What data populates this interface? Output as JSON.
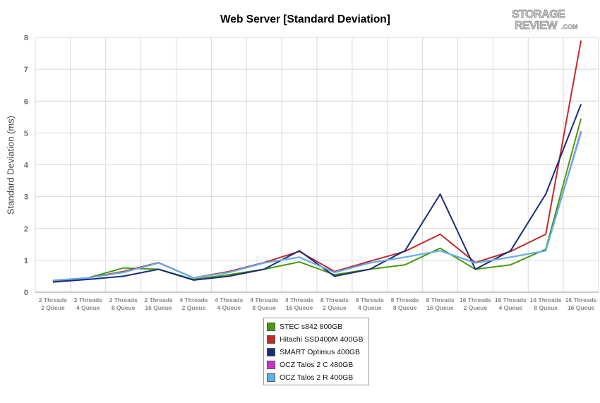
{
  "chart_data": {
    "type": "line",
    "title": "Web Server [Standard Deviation]",
    "xlabel": "",
    "ylabel": "Standard Deviation (ms)",
    "ylim": [
      0,
      8
    ],
    "yticks": [
      "0",
      "1",
      "2",
      "3",
      "4",
      "5",
      "6",
      "7",
      "8"
    ],
    "grid": true,
    "legend_position": "bottom",
    "categories": [
      [
        "2 Threads",
        "2 Queue"
      ],
      [
        "2 Threads",
        "4 Queue"
      ],
      [
        "2 Threads",
        "8 Queue"
      ],
      [
        "2 Threads",
        "16 Queue"
      ],
      [
        "4 Threads",
        "2 Queue"
      ],
      [
        "4 Threads",
        "4 Queue"
      ],
      [
        "4 Threads",
        "8 Queue"
      ],
      [
        "4 Threads",
        "16 Queue"
      ],
      [
        "8 Threads",
        "2 Queue"
      ],
      [
        "8 Threads",
        "4 Queue"
      ],
      [
        "8 Threads",
        "8 Queue"
      ],
      [
        "8 Threads",
        "16 Queue"
      ],
      [
        "16 Threads",
        "2 Queue"
      ],
      [
        "16 Threads",
        "4 Queue"
      ],
      [
        "16 Threads",
        "8 Queue"
      ],
      [
        "16 Threads",
        "16 Queue"
      ]
    ],
    "series": [
      {
        "name": "STEC s842 800GB",
        "color": "#4a9a0f",
        "values": [
          0.35,
          0.45,
          0.76,
          0.72,
          0.4,
          0.55,
          0.72,
          0.95,
          0.55,
          0.72,
          0.86,
          1.38,
          0.72,
          0.86,
          1.35,
          5.45
        ]
      },
      {
        "name": "Hitachi SSD400M 400GB",
        "color": "#c22a2a",
        "values": [
          0.35,
          0.45,
          0.65,
          0.93,
          0.45,
          0.65,
          0.93,
          1.28,
          0.65,
          0.97,
          1.28,
          1.82,
          0.93,
          1.28,
          1.82,
          7.9
        ]
      },
      {
        "name": "SMART Optimus 400GB",
        "color": "#1c2a7a",
        "values": [
          0.32,
          0.4,
          0.5,
          0.72,
          0.38,
          0.5,
          0.72,
          1.3,
          0.5,
          0.72,
          1.3,
          3.08,
          0.72,
          1.3,
          3.08,
          5.9
        ]
      },
      {
        "name": "OCZ Talos 2 C 480GB",
        "color": "#cc33cc",
        "values": [
          0.37,
          0.45,
          0.62,
          0.92,
          0.45,
          0.62,
          0.92,
          1.1,
          0.62,
          0.92,
          1.1,
          1.3,
          0.92,
          1.1,
          1.3,
          5.05
        ]
      },
      {
        "name": "OCZ Talos 2 R 400GB",
        "color": "#5ab5ea",
        "values": [
          0.37,
          0.45,
          0.62,
          0.92,
          0.45,
          0.62,
          0.92,
          1.1,
          0.62,
          0.92,
          1.1,
          1.3,
          0.92,
          1.1,
          1.3,
          5.0
        ]
      }
    ]
  },
  "logo": {
    "line1": "STORAGE",
    "line2": "REVIEW",
    "suffix": ".COM"
  }
}
